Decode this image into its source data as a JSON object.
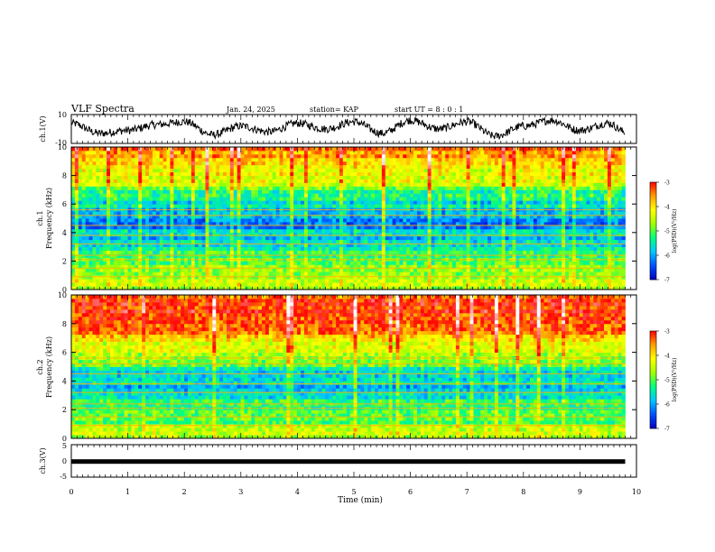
{
  "header": {
    "title": "VLF Spectra",
    "date": "Jan. 24, 2025",
    "station": "station= KAP",
    "start": "start UT =  8 : 0 : 1"
  },
  "colors": {
    "background": "#ffffff",
    "axis": "#000000",
    "colormap": [
      "#000000",
      "#0000c0",
      "#0050ff",
      "#00c8ff",
      "#00ff80",
      "#a0ff00",
      "#ffff00",
      "#ffa000",
      "#ff0000",
      "#ff8080",
      "#ffffff"
    ]
  },
  "chart_data": [
    {
      "type": "line",
      "ylabel": "ch.1(V)",
      "ylim": [
        -10,
        10
      ],
      "yticks": [
        "10",
        "-10"
      ],
      "xlim": [
        0,
        10
      ],
      "series_summary": "noisy waveform oscillating between about -8 and +8 V",
      "x_min": [
        0,
        0.5,
        1,
        1.5,
        2,
        2.5,
        3,
        3.5,
        4,
        4.5,
        5,
        5.5,
        6,
        6.5,
        7,
        7.5,
        8,
        8.5,
        9,
        9.5,
        9.8
      ],
      "y_approx": [
        4,
        -3,
        -1,
        3,
        5,
        -4,
        2,
        -2,
        4,
        0,
        5,
        -3,
        6,
        0,
        5,
        -5,
        2,
        6,
        -1,
        4,
        -2
      ]
    },
    {
      "type": "heatmap",
      "ylabel": "ch.1\nFrequency (kHz)",
      "ylabel_line1": "ch.1",
      "ylabel_line2": "Frequency (kHz)",
      "ylim": [
        0,
        10
      ],
      "yticks": [
        "0",
        "2",
        "4",
        "6",
        "8",
        "10"
      ],
      "xlim": [
        0,
        10
      ],
      "colorbar": {
        "label": "log(PSD)(V²/Hz)",
        "range": [
          -7,
          -3
        ],
        "ticks": [
          "-3",
          "-4",
          "-5",
          "-6",
          "-7"
        ]
      },
      "profile_khz": [
        0,
        0.5,
        1,
        1.5,
        2,
        2.5,
        3,
        3.5,
        4,
        4.5,
        5,
        5.5,
        6,
        6.5,
        7,
        7.5,
        8,
        8.5,
        9,
        9.5,
        10
      ],
      "profile_logpsd": [
        -4.5,
        -4.6,
        -4.8,
        -5.0,
        -5.1,
        -5.2,
        -5.6,
        -5.9,
        -5.7,
        -6.2,
        -6.0,
        -5.9,
        -5.6,
        -5.3,
        -5.0,
        -4.6,
        -4.3,
        -4.0,
        -3.8,
        -3.6,
        -3.5
      ]
    },
    {
      "type": "heatmap",
      "ylabel": "ch.2\nFrequency (kHz)",
      "ylabel_line1": "ch.2",
      "ylabel_line2": "Frequency (kHz)",
      "ylim": [
        0,
        10
      ],
      "yticks": [
        "0",
        "2",
        "4",
        "6",
        "8",
        "10"
      ],
      "xlim": [
        0,
        10
      ],
      "colorbar": {
        "label": "log(PSD)(V²/Hz)",
        "range": [
          -7,
          -3
        ],
        "ticks": [
          "-3",
          "-4",
          "-5",
          "-6",
          "-7"
        ]
      },
      "profile_khz": [
        0,
        0.5,
        1,
        1.5,
        2,
        2.5,
        3,
        3.5,
        4,
        4.5,
        5,
        5.5,
        6,
        6.5,
        7,
        7.5,
        8,
        8.5,
        9,
        9.5,
        10
      ],
      "profile_logpsd": [
        -4.4,
        -4.6,
        -4.8,
        -5.0,
        -5.1,
        -5.3,
        -5.6,
        -5.8,
        -5.5,
        -5.6,
        -5.3,
        -4.8,
        -4.6,
        -4.3,
        -4.0,
        -3.6,
        -3.4,
        -3.3,
        -3.2,
        -3.2,
        -3.2
      ]
    },
    {
      "type": "line",
      "ylabel": "ch.3(V)",
      "ylim": [
        -5,
        5
      ],
      "yticks": [
        "5",
        "0",
        "-5"
      ],
      "xlim": [
        0,
        10
      ],
      "xlabel": "Time (min)",
      "xticks": [
        "0",
        "1",
        "2",
        "3",
        "4",
        "5",
        "6",
        "7",
        "8",
        "9",
        "10"
      ],
      "series_summary": "thick flat band near -0.2 V from 0 to 9.8 min",
      "x_min": [
        0,
        9.8
      ],
      "y_approx": [
        -0.2,
        -0.2
      ]
    }
  ]
}
